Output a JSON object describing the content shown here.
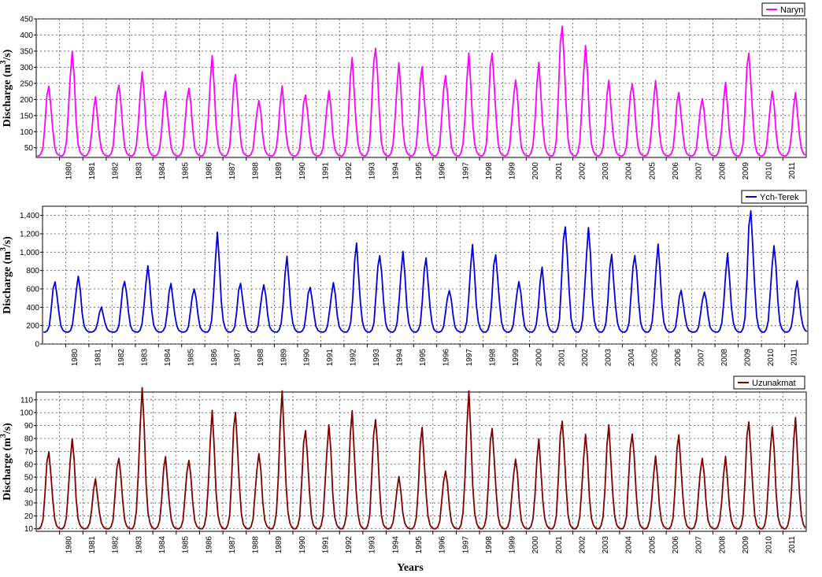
{
  "chart_data": [
    {
      "type": "line",
      "xlabel": "",
      "ylabel_main": "Discharge (m",
      "ylabel_sup": "3",
      "ylabel_tail": "/s)",
      "y_ticks": [
        "50",
        "100",
        "150",
        "200",
        "250",
        "300",
        "350",
        "400",
        "450"
      ],
      "y_tick_values": [
        50,
        100,
        150,
        200,
        250,
        300,
        350,
        400,
        450
      ],
      "ylim": [
        20,
        450
      ],
      "xlim": [
        1979.0,
        2012.0
      ],
      "x_ticks": [
        "1980",
        "1981",
        "1982",
        "1983",
        "1984",
        "1985",
        "1986",
        "1987",
        "1988",
        "1989",
        "1990",
        "1991",
        "1992",
        "1993",
        "1994",
        "1995",
        "1996",
        "1997",
        "1998",
        "1999",
        "2000",
        "2001",
        "2002",
        "2003",
        "2004",
        "2005",
        "2006",
        "2007",
        "2008",
        "2009",
        "2010",
        "2011"
      ],
      "grid": true,
      "legend_position": "top-right",
      "series": [
        {
          "name": "Naryn",
          "color": "#ff00ff",
          "base": 25,
          "peaks": [
            250,
            350,
            200,
            258,
            278,
            222,
            247,
            320,
            282,
            202,
            230,
            223,
            226,
            318,
            380,
            303,
            300,
            287,
            327,
            353,
            265,
            300,
            450,
            362,
            252,
            262,
            248,
            222,
            210,
            240,
            356,
            228,
            212
          ]
        }
      ]
    },
    {
      "type": "line",
      "xlabel": "",
      "ylabel_main": "Discharge (m",
      "ylabel_sup": "3",
      "ylabel_tail": "/s)",
      "y_ticks": [
        "0",
        "200",
        "400",
        "600",
        "800",
        "1,000",
        "1,200",
        "1,400"
      ],
      "y_tick_values": [
        0,
        200,
        400,
        600,
        800,
        1000,
        1200,
        1400
      ],
      "ylim": [
        0,
        1500
      ],
      "xlim": [
        1979.0,
        2012.0
      ],
      "x_ticks": [
        "1980",
        "1981",
        "1982",
        "1983",
        "1984",
        "1985",
        "1986",
        "1987",
        "1988",
        "1989",
        "1990",
        "1991",
        "1992",
        "1993",
        "1994",
        "1995",
        "1996",
        "1997",
        "1998",
        "1999",
        "2000",
        "2001",
        "2002",
        "2003",
        "2004",
        "2005",
        "2006",
        "2007",
        "2008",
        "2009",
        "2010",
        "2011"
      ],
      "grid": true,
      "legend_position": "top-right",
      "series": [
        {
          "name": "Ych-Terek",
          "color": "#0000dd",
          "base": 130,
          "peaks": [
            700,
            740,
            390,
            715,
            830,
            650,
            625,
            1160,
            670,
            660,
            910,
            640,
            665,
            1060,
            1015,
            975,
            930,
            605,
            1030,
            995,
            690,
            800,
            1340,
            1250,
            950,
            1015,
            1045,
            585,
            585,
            940,
            1500,
            1080,
            660
          ]
        }
      ]
    },
    {
      "type": "line",
      "xlabel": "Years",
      "ylabel_main": "Discharge (m",
      "ylabel_sup": "3",
      "ylabel_tail": "/s)",
      "y_ticks": [
        "10",
        "20",
        "30",
        "40",
        "50",
        "60",
        "70",
        "80",
        "90",
        "100",
        "110"
      ],
      "y_tick_values": [
        10,
        20,
        30,
        40,
        50,
        60,
        70,
        80,
        90,
        100,
        110
      ],
      "ylim": [
        8,
        116
      ],
      "xlim": [
        1979.0,
        2012.0
      ],
      "x_ticks": [
        "1980",
        "1981",
        "1982",
        "1983",
        "1984",
        "1985",
        "1986",
        "1987",
        "1988",
        "1989",
        "1990",
        "1991",
        "1992",
        "1993",
        "1994",
        "1995",
        "1996",
        "1997",
        "1998",
        "1999",
        "2000",
        "2001",
        "2002",
        "2003",
        "2004",
        "2005",
        "2006",
        "2007",
        "2008",
        "2009",
        "2010",
        "2011"
      ],
      "grid": true,
      "legend_position": "top-right",
      "series": [
        {
          "name": "Uzunakmat",
          "color": "#800000",
          "base": 10,
          "peaks": [
            72,
            80,
            47,
            68,
            116,
            65,
            66,
            97,
            102,
            70,
            111,
            90,
            90,
            98,
            100,
            49,
            88,
            57,
            111,
            90,
            65,
            76,
            98,
            82,
            88,
            88,
            64,
            83,
            67,
            63,
            96,
            90,
            92
          ]
        }
      ]
    }
  ]
}
